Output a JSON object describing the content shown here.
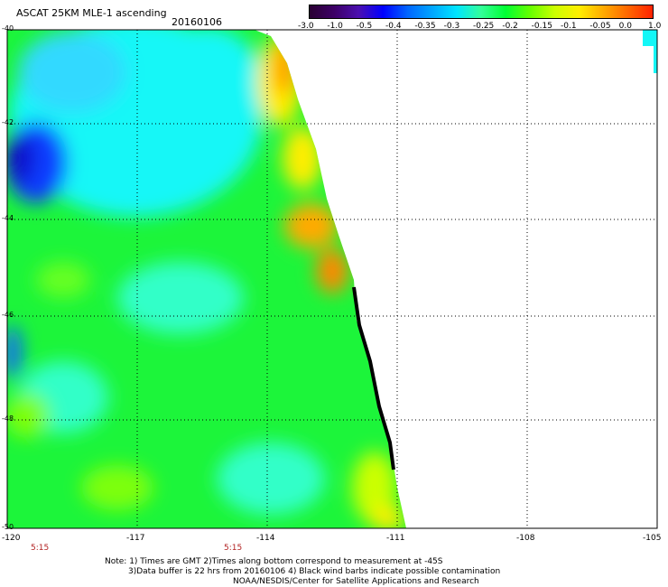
{
  "header": {
    "title": "ASCAT 25KM MLE-1 ascending",
    "date": "20160106"
  },
  "colorbar": {
    "labels": [
      "-3.0",
      "-1.0",
      "-0.5",
      "-0.4",
      "-0.35",
      "-0.3",
      "-0.25",
      "-0.2",
      "-0.15",
      "-0.1",
      "-0.05",
      "0.0",
      "1.0"
    ],
    "colors": [
      "#2a0033",
      "#3d0066",
      "#4b0fb0",
      "#0000ff",
      "#0066ff",
      "#00a6ff",
      "#00e5ff",
      "#33ff99",
      "#00ff33",
      "#66ff00",
      "#ccff00",
      "#ffee00",
      "#ffaa00",
      "#ff6600",
      "#ff2200"
    ]
  },
  "map": {
    "lat_labels": [
      "-40",
      "-42",
      "-44",
      "-46",
      "-48",
      "-50"
    ],
    "lon_labels": [
      "-120",
      "-117",
      "-114",
      "-111",
      "-108",
      "-105"
    ],
    "time_labels": [
      "5:15",
      "5:15"
    ],
    "colors": {
      "green": "#1cf53a",
      "cyan": "#14f7f7",
      "light_cyan": "#33ffd9",
      "blue": "#0a3cff",
      "dark_blue": "#1010cc",
      "yellow": "#ffee00",
      "orange": "#ff9900",
      "light_green": "#7dff10"
    }
  },
  "footer": {
    "line1": "Note: 1) Times are GMT 2)Times along bottom correspond to measurement at -45S",
    "line2": "3)Data buffer is 22 hrs from 20160106 4) Black wind barbs indicate possible contamination",
    "line3": "NOAA/NESDIS/Center for Satellite Applications and Research"
  }
}
